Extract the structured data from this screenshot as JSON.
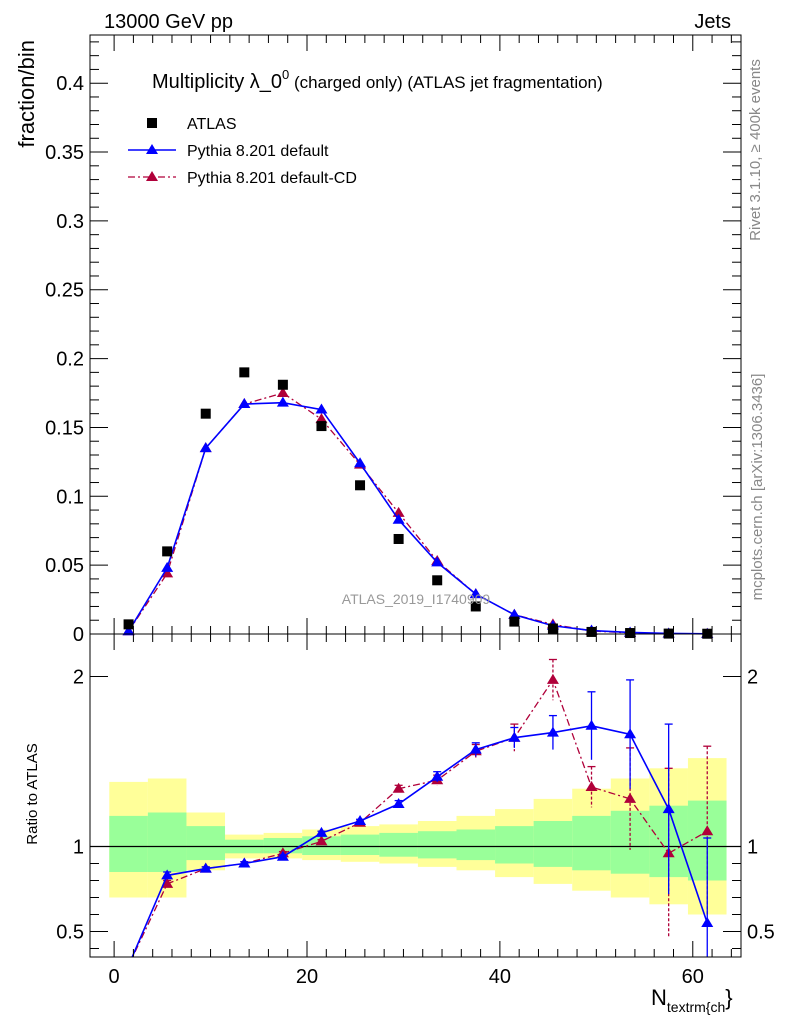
{
  "header": {
    "left": "13000 GeV pp",
    "right": "Jets"
  },
  "side_labels": {
    "top": "Rivet 3.1.10, ≥ 400k events",
    "bottom": "mcplots.cern.ch [arXiv:1306.3436]"
  },
  "chart_data": [
    {
      "type": "scatter",
      "title_main": "Multiplicity λ_0",
      "title_sup": "0",
      "title_rest": " (charged only) (ATLAS jet fragmentation)",
      "ylabel": "fraction/bin",
      "watermark": "ATLAS_2019_I1740909",
      "xlim": [
        -2.5,
        65
      ],
      "ylim": [
        0,
        0.435
      ],
      "yticks": [
        "0",
        "0.05",
        "0.1",
        "0.15",
        "0.2",
        "0.25",
        "0.3",
        "0.35",
        "0.4"
      ],
      "ytick_values": [
        0,
        0.05,
        0.1,
        0.15,
        0.2,
        0.25,
        0.3,
        0.35,
        0.4
      ],
      "x": [
        1.5,
        5.5,
        9.5,
        13.5,
        17.5,
        21.5,
        25.5,
        29.5,
        33.5,
        37.5,
        41.5,
        45.5,
        49.5,
        53.5,
        57.5,
        61.5
      ],
      "series": [
        {
          "name": "ATLAS",
          "color": "#000000",
          "marker": "square",
          "values": [
            0.007,
            0.06,
            0.16,
            0.19,
            0.181,
            0.151,
            0.108,
            0.069,
            0.039,
            0.02,
            0.009,
            0.004,
            0.0015,
            0.0007,
            0.0003,
            0.0002
          ]
        },
        {
          "name": "Pythia 8.201 default",
          "color": "#0000ff",
          "marker": "triangle",
          "line": "solid",
          "values": [
            0.002,
            0.048,
            0.135,
            0.167,
            0.168,
            0.163,
            0.124,
            0.083,
            0.052,
            0.029,
            0.014,
            0.006,
            0.0025,
            0.0011,
            0.0004,
            0.0001
          ]
        },
        {
          "name": "Pythia 8.201 default-CD",
          "color": "#b0003a",
          "marker": "triangle",
          "line": "dashdot",
          "values": [
            0.002,
            0.044,
            0.135,
            0.167,
            0.175,
            0.156,
            0.123,
            0.088,
            0.053,
            0.029,
            0.014,
            0.007,
            0.0022,
            0.0008,
            0.0003,
            0.0002
          ]
        }
      ]
    },
    {
      "type": "line",
      "ylabel": "Ratio to ATLAS",
      "xlabel_main": "N",
      "xlabel_sub": "textrm{ch",
      "xlabel_close": "}",
      "xlim": [
        -2.5,
        65
      ],
      "ylim": [
        0.35,
        2.25
      ],
      "yticks": [
        "0.5",
        "1",
        "2"
      ],
      "ytick_values": [
        0.5,
        1,
        2
      ],
      "xticks": [
        "0",
        "20",
        "40",
        "60"
      ],
      "xtick_values": [
        0,
        20,
        40,
        60
      ],
      "bin_edges": [
        -0.5,
        3.5,
        7.5,
        11.5,
        15.5,
        19.5,
        23.5,
        27.5,
        31.5,
        35.5,
        39.5,
        43.5,
        47.5,
        51.5,
        55.5,
        59.5,
        63.5
      ],
      "band_yellow_low": [
        0.7,
        0.7,
        0.86,
        0.93,
        0.93,
        0.92,
        0.91,
        0.9,
        0.88,
        0.86,
        0.82,
        0.78,
        0.74,
        0.7,
        0.66,
        0.6
      ],
      "band_yellow_high": [
        1.38,
        1.4,
        1.2,
        1.07,
        1.08,
        1.1,
        1.12,
        1.13,
        1.15,
        1.18,
        1.22,
        1.28,
        1.34,
        1.4,
        1.46,
        1.52
      ],
      "band_green_low": [
        0.85,
        0.85,
        0.92,
        0.96,
        0.96,
        0.95,
        0.95,
        0.94,
        0.93,
        0.92,
        0.9,
        0.88,
        0.86,
        0.84,
        0.82,
        0.8
      ],
      "band_green_high": [
        1.18,
        1.2,
        1.12,
        1.04,
        1.05,
        1.06,
        1.07,
        1.08,
        1.09,
        1.1,
        1.12,
        1.15,
        1.18,
        1.21,
        1.24,
        1.27
      ],
      "x": [
        1.5,
        5.5,
        9.5,
        13.5,
        17.5,
        21.5,
        25.5,
        29.5,
        33.5,
        37.5,
        41.5,
        45.5,
        49.5,
        53.5,
        57.5,
        61.5
      ],
      "series": [
        {
          "name": "Pythia 8.201 default",
          "color": "#0000ff",
          "line": "solid",
          "values": [
            0.3,
            0.83,
            0.87,
            0.9,
            0.94,
            1.08,
            1.15,
            1.25,
            1.41,
            1.57,
            1.64,
            1.67,
            1.71,
            1.66,
            1.22,
            0.55
          ],
          "err": [
            0,
            0.02,
            0.01,
            0.01,
            0.01,
            0.01,
            0.01,
            0.02,
            0.03,
            0.04,
            0.06,
            0.1,
            0.2,
            0.32,
            0.5,
            0.5
          ]
        },
        {
          "name": "Pythia 8.201 default-CD",
          "color": "#b0003a",
          "line": "dashdot",
          "values": [
            0.3,
            0.78,
            0.87,
            0.9,
            0.96,
            1.03,
            1.14,
            1.34,
            1.39,
            1.56,
            1.64,
            1.98,
            1.35,
            1.28,
            0.96,
            1.09
          ],
          "err": [
            0,
            0.02,
            0.01,
            0.01,
            0.01,
            0.01,
            0.01,
            0.02,
            0.03,
            0.04,
            0.08,
            0.12,
            0.12,
            0.3,
            0.5,
            0.5
          ]
        }
      ]
    }
  ]
}
